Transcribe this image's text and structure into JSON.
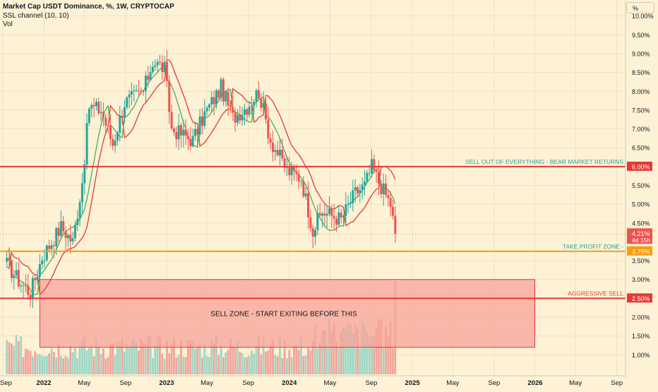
{
  "header": {
    "title": "Market Cap USDT Dominance, %, 1W, CRYPTOCAP",
    "indicator_1": "SSL channel (10, 10)",
    "indicator_2": "Vol",
    "unit_button": "%"
  },
  "colors": {
    "background": "#fdf2d6",
    "candle_up": "#26a69a",
    "candle_down": "#ef5350",
    "ssl_up": "#4caf50",
    "ssl_down": "#e53935",
    "level_red": "#e53935",
    "level_orange": "#f59d0e",
    "zone_fill": "#f7a39a",
    "annotation_teal": "#26a69a"
  },
  "chart_data": {
    "type": "candlestick",
    "title": "Market Cap USDT Dominance, %, 1W, CRYPTOCAP",
    "y_axis": {
      "side": "right",
      "ticks": [
        "10.00%",
        "9.50%",
        "9.00%",
        "8.50%",
        "8.00%",
        "7.50%",
        "7.00%",
        "6.50%",
        "5.50%",
        "5.00%",
        "4.50%",
        "3.50%",
        "3.00%",
        "2.00%",
        "1.50%",
        "1.00%"
      ],
      "ylim": [
        0.8,
        10.05
      ]
    },
    "x_axis": {
      "ticks": [
        "Sep",
        "2022",
        "May",
        "Sep",
        "2023",
        "May",
        "Sep",
        "2024",
        "May",
        "Sep",
        "2025",
        "May",
        "Sep",
        "2026",
        "May",
        "Sep"
      ]
    },
    "last_value": {
      "value": 4.21,
      "label": "4.21%",
      "countdown": "4d 15h"
    },
    "levels": [
      {
        "value": 6.0,
        "label": "6.00%",
        "note": "SELL OUT OF EVERYTHING - BEAR MARKET RETURNS",
        "color": "#e53935"
      },
      {
        "value": 3.75,
        "label": "3.75%",
        "note": "TAKE PROFIT ZONE -",
        "color": "#f59d0e"
      },
      {
        "value": 2.5,
        "label": "2.50%",
        "note": "AGGRESSIVE SELL",
        "color": "#e53935"
      }
    ],
    "zone": {
      "label": "SELL ZONE - START EXITING BEFORE THIS",
      "y_top": 3.0,
      "y_bottom": 1.2,
      "x_start": "2021-12-20",
      "x_end": "2025-12-31"
    },
    "anchors": [
      {
        "date": "2021-09-13",
        "close": 3.4
      },
      {
        "date": "2021-10-25",
        "close": 2.9
      },
      {
        "date": "2021-11-22",
        "close": 2.65
      },
      {
        "date": "2021-12-27",
        "close": 3.6
      },
      {
        "date": "2022-02-21",
        "close": 4.4
      },
      {
        "date": "2022-03-28",
        "close": 4.0
      },
      {
        "date": "2022-04-25",
        "close": 5.6
      },
      {
        "date": "2022-05-16",
        "close": 7.6
      },
      {
        "date": "2022-06-20",
        "close": 7.5
      },
      {
        "date": "2022-07-25",
        "close": 6.6
      },
      {
        "date": "2022-08-29",
        "close": 7.7
      },
      {
        "date": "2022-10-24",
        "close": 8.0
      },
      {
        "date": "2022-11-21",
        "close": 8.8
      },
      {
        "date": "2022-12-26",
        "close": 8.6
      },
      {
        "date": "2023-01-16",
        "close": 7.0
      },
      {
        "date": "2023-03-20",
        "close": 6.7
      },
      {
        "date": "2023-04-24",
        "close": 7.4
      },
      {
        "date": "2023-06-12",
        "close": 8.1
      },
      {
        "date": "2023-07-17",
        "close": 7.3
      },
      {
        "date": "2023-08-28",
        "close": 7.6
      },
      {
        "date": "2023-10-02",
        "close": 8.0
      },
      {
        "date": "2023-11-06",
        "close": 6.7
      },
      {
        "date": "2023-12-25",
        "close": 5.9
      },
      {
        "date": "2024-02-05",
        "close": 5.7
      },
      {
        "date": "2024-03-11",
        "close": 4.3
      },
      {
        "date": "2024-04-08",
        "close": 4.8
      },
      {
        "date": "2024-06-03",
        "close": 4.6
      },
      {
        "date": "2024-07-15",
        "close": 5.3
      },
      {
        "date": "2024-08-12",
        "close": 5.5
      },
      {
        "date": "2024-09-02",
        "close": 6.0
      },
      {
        "date": "2024-09-23",
        "close": 5.6
      },
      {
        "date": "2024-10-28",
        "close": 5.0
      },
      {
        "date": "2024-11-11",
        "close": 4.21
      }
    ],
    "volume_spike": {
      "date": "2024-11-11",
      "relative": 1.0
    }
  }
}
